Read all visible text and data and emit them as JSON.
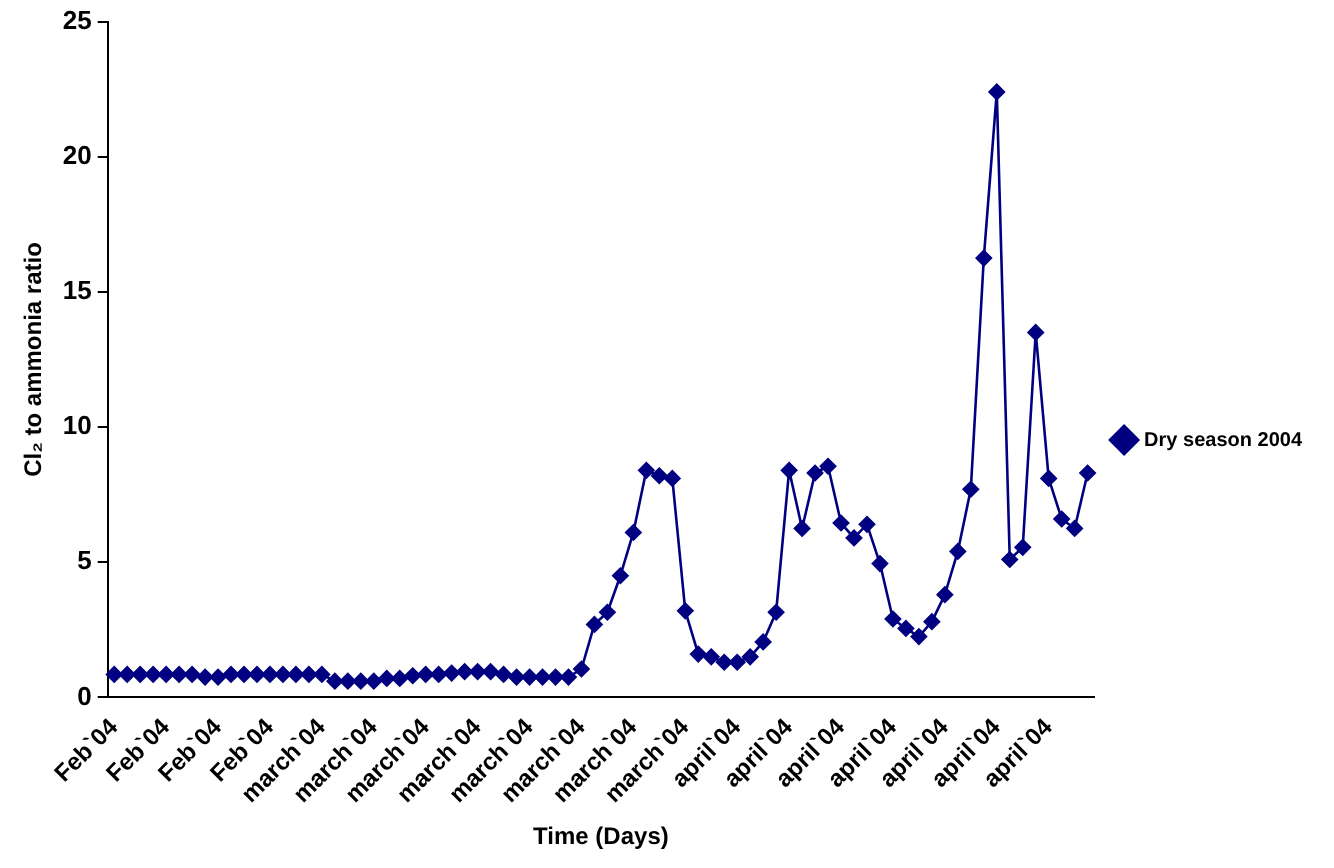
{
  "chart_data": {
    "type": "line",
    "xlabel": "Time (Days)",
    "ylabel": "Cl₂ to ammonia ratio",
    "categories": [
      "Feb`04",
      null,
      null,
      null,
      "Feb`04",
      null,
      null,
      null,
      "Feb`04",
      null,
      null,
      null,
      "Feb`04",
      null,
      null,
      null,
      "march`04",
      null,
      null,
      null,
      "march`04",
      null,
      null,
      null,
      "march`04",
      null,
      null,
      null,
      "march`04",
      null,
      null,
      null,
      "march`04",
      null,
      null,
      null,
      "march`04",
      null,
      null,
      null,
      "march`04",
      null,
      null,
      null,
      "march`04",
      null,
      null,
      null,
      "april`04",
      null,
      null,
      null,
      "april`04",
      null,
      null,
      null,
      "april`04",
      null,
      null,
      null,
      "april`04",
      null,
      null,
      null,
      "april`04",
      null,
      null,
      null,
      "april`04",
      null,
      null,
      null,
      "april`04",
      null,
      null,
      null
    ],
    "series": [
      {
        "name": "Dry season 2004",
        "color": "#000080",
        "values": [
          0.85,
          0.85,
          0.85,
          0.85,
          0.85,
          0.85,
          0.85,
          0.75,
          0.75,
          0.85,
          0.85,
          0.85,
          0.85,
          0.85,
          0.85,
          0.85,
          0.85,
          0.6,
          0.6,
          0.6,
          0.6,
          0.7,
          0.7,
          0.8,
          0.85,
          0.85,
          0.9,
          0.95,
          0.95,
          0.95,
          0.85,
          0.75,
          0.75,
          0.75,
          0.75,
          0.75,
          1.05,
          2.7,
          3.15,
          4.5,
          6.1,
          8.4,
          8.2,
          8.1,
          3.2,
          1.6,
          1.5,
          1.3,
          1.3,
          1.5,
          2.05,
          3.15,
          8.4,
          6.25,
          8.3,
          8.55,
          6.45,
          5.9,
          6.4,
          4.95,
          2.9,
          2.55,
          2.25,
          2.8,
          3.8,
          5.4,
          7.7,
          16.25,
          22.4,
          5.1,
          5.55,
          13.5,
          8.1,
          6.6,
          6.25,
          8.3
        ]
      }
    ],
    "ylim": [
      0,
      25
    ],
    "yticks": [
      0,
      5,
      10,
      15,
      20,
      25
    ],
    "grid": false,
    "legend": "right",
    "marker": "diamond",
    "line_style": "solid"
  }
}
